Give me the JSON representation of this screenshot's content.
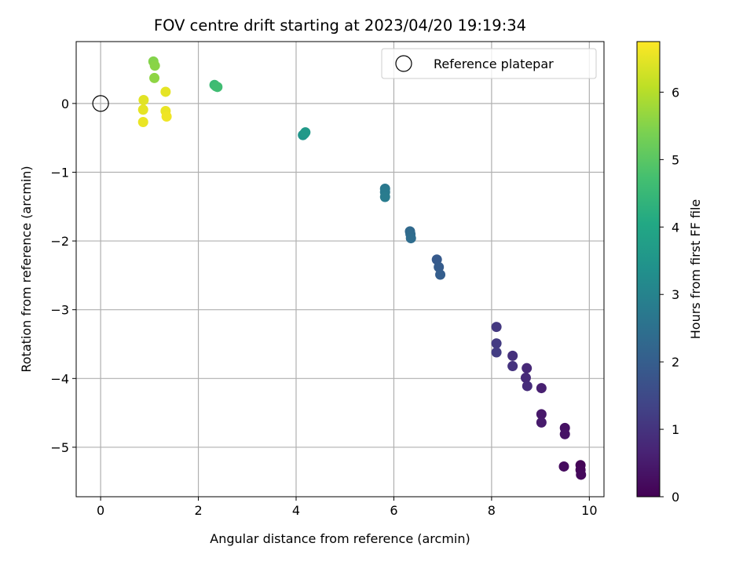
{
  "chart_data": {
    "type": "scatter",
    "title": "FOV centre drift starting at 2023/04/20 19:19:34",
    "xlabel": "Angular distance from reference (arcmin)",
    "ylabel": "Rotation from reference (arcmin)",
    "xlim": [
      -0.5,
      10.3
    ],
    "ylim": [
      -5.72,
      0.9
    ],
    "xticks": [
      0,
      2,
      4,
      6,
      8,
      10
    ],
    "yticks": [
      0,
      -1,
      -2,
      -3,
      -4,
      -5
    ],
    "xtick_labels": [
      "0",
      "2",
      "4",
      "6",
      "8",
      "10"
    ],
    "ytick_labels": [
      "0",
      "−1",
      "−2",
      "−3",
      "−4",
      "−5"
    ],
    "grid": true,
    "legend": {
      "position": "upper-right",
      "label": "Reference platepar"
    },
    "reference_point": {
      "x": 0,
      "y": 0
    },
    "colorbar": {
      "label": "Hours from first FF file",
      "range": [
        0,
        6.75
      ],
      "ticks": [
        0,
        1,
        2,
        3,
        4,
        5,
        6
      ],
      "tick_labels": [
        "0",
        "1",
        "2",
        "3",
        "4",
        "5",
        "6"
      ],
      "colormap": "viridis"
    },
    "points": [
      {
        "x": 9.82,
        "y": -5.26,
        "c": 0.05
      },
      {
        "x": 9.82,
        "y": -5.33,
        "c": 0.1
      },
      {
        "x": 9.83,
        "y": -5.4,
        "c": 0.15
      },
      {
        "x": 9.48,
        "y": -5.28,
        "c": 0.2
      },
      {
        "x": 9.5,
        "y": -4.72,
        "c": 0.3
      },
      {
        "x": 9.5,
        "y": -4.81,
        "c": 0.35
      },
      {
        "x": 9.02,
        "y": -4.52,
        "c": 0.45
      },
      {
        "x": 9.02,
        "y": -4.64,
        "c": 0.5
      },
      {
        "x": 9.02,
        "y": -4.14,
        "c": 0.6
      },
      {
        "x": 8.72,
        "y": -3.85,
        "c": 0.75
      },
      {
        "x": 8.7,
        "y": -3.99,
        "c": 0.8
      },
      {
        "x": 8.73,
        "y": -4.11,
        "c": 0.85
      },
      {
        "x": 8.43,
        "y": -3.67,
        "c": 0.95
      },
      {
        "x": 8.43,
        "y": -3.82,
        "c": 1.0
      },
      {
        "x": 8.1,
        "y": -3.25,
        "c": 1.1
      },
      {
        "x": 8.1,
        "y": -3.49,
        "c": 1.15
      },
      {
        "x": 8.1,
        "y": -3.62,
        "c": 1.2
      },
      {
        "x": 6.88,
        "y": -2.27,
        "c": 1.9
      },
      {
        "x": 6.92,
        "y": -2.38,
        "c": 1.95
      },
      {
        "x": 6.95,
        "y": -2.49,
        "c": 2.0
      },
      {
        "x": 6.33,
        "y": -1.86,
        "c": 2.3
      },
      {
        "x": 6.34,
        "y": -1.9,
        "c": 2.35
      },
      {
        "x": 6.35,
        "y": -1.96,
        "c": 2.4
      },
      {
        "x": 5.82,
        "y": -1.24,
        "c": 2.7
      },
      {
        "x": 5.82,
        "y": -1.29,
        "c": 2.75
      },
      {
        "x": 5.82,
        "y": -1.36,
        "c": 2.8
      },
      {
        "x": 4.14,
        "y": -0.46,
        "c": 3.5
      },
      {
        "x": 4.17,
        "y": -0.44,
        "c": 3.55
      },
      {
        "x": 4.19,
        "y": -0.42,
        "c": 3.6
      },
      {
        "x": 2.33,
        "y": 0.27,
        "c": 4.55
      },
      {
        "x": 2.36,
        "y": 0.25,
        "c": 4.6
      },
      {
        "x": 2.39,
        "y": 0.24,
        "c": 4.65
      },
      {
        "x": 1.08,
        "y": 0.61,
        "c": 5.5
      },
      {
        "x": 1.11,
        "y": 0.55,
        "c": 5.55
      },
      {
        "x": 1.1,
        "y": 0.37,
        "c": 5.6
      },
      {
        "x": 1.33,
        "y": 0.17,
        "c": 6.5
      },
      {
        "x": 1.33,
        "y": -0.11,
        "c": 6.55
      },
      {
        "x": 1.35,
        "y": -0.19,
        "c": 6.6
      },
      {
        "x": 0.88,
        "y": 0.05,
        "c": 6.45
      },
      {
        "x": 0.87,
        "y": -0.09,
        "c": 6.5
      },
      {
        "x": 0.87,
        "y": -0.27,
        "c": 6.55
      }
    ]
  }
}
